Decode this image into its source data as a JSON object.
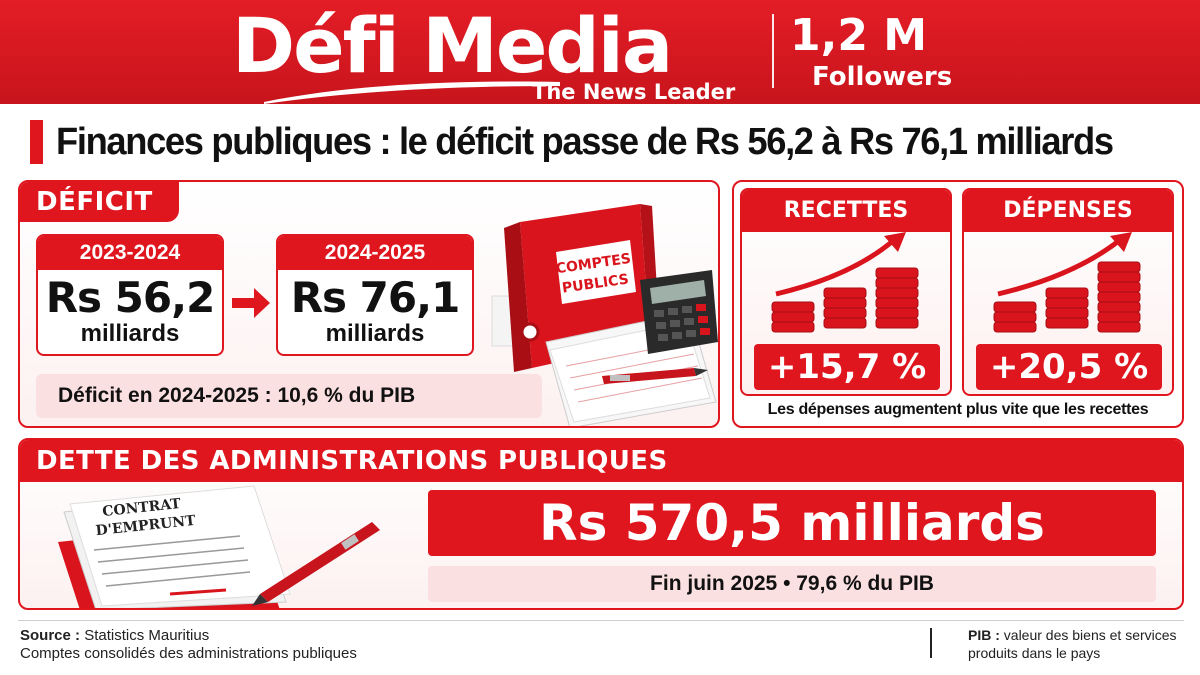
{
  "header": {
    "brand": "Défi Media",
    "tagline": "The News Leader",
    "followers_count": "1,2 M",
    "followers_label": "Followers"
  },
  "headline": "Finances publiques : le déficit passe de Rs 56,2 à Rs 76,1 milliards",
  "deficit": {
    "title": "DÉFICIT",
    "years": [
      {
        "label": "2023-2024",
        "value": "Rs 56,2",
        "unit": "milliards"
      },
      {
        "label": "2024-2025",
        "value": "Rs 76,1",
        "unit": "milliards"
      }
    ],
    "note": "Déficit en 2024-2025 : 10,6 % du PIB",
    "binder_label_line1": "COMPTES",
    "binder_label_line2": "PUBLICS"
  },
  "recettes": {
    "title": "RECETTES",
    "value": "+15,7 %"
  },
  "depenses": {
    "title": "DÉPENSES",
    "value": "+20,5 %"
  },
  "rd_caption": "Les dépenses augmentent plus vite que les recettes",
  "dette": {
    "title": "DETTE DES ADMINISTRATIONS PUBLIQUES",
    "value": "Rs 570,5 milliards",
    "note": "Fin juin 2025 • 79,6 % du PIB",
    "contract_line1": "CONTRAT",
    "contract_line2": "D'EMPRUNT"
  },
  "footer": {
    "source_label": "Source :",
    "source_value": "Statistics Mauritius",
    "source_line2": "Comptes consolidés des administrations publiques",
    "pib_label": "PIB :",
    "pib_line1": "valeur des biens et services",
    "pib_line2": "produits dans le pays"
  },
  "colors": {
    "accent": "#e0161f",
    "accent_light": "#fbe0e1",
    "text": "#111111"
  },
  "icons": [
    "arrow-right-icon",
    "binder-icon",
    "calculator-icon",
    "pen-icon",
    "coins-growth-icon",
    "contract-icon"
  ]
}
